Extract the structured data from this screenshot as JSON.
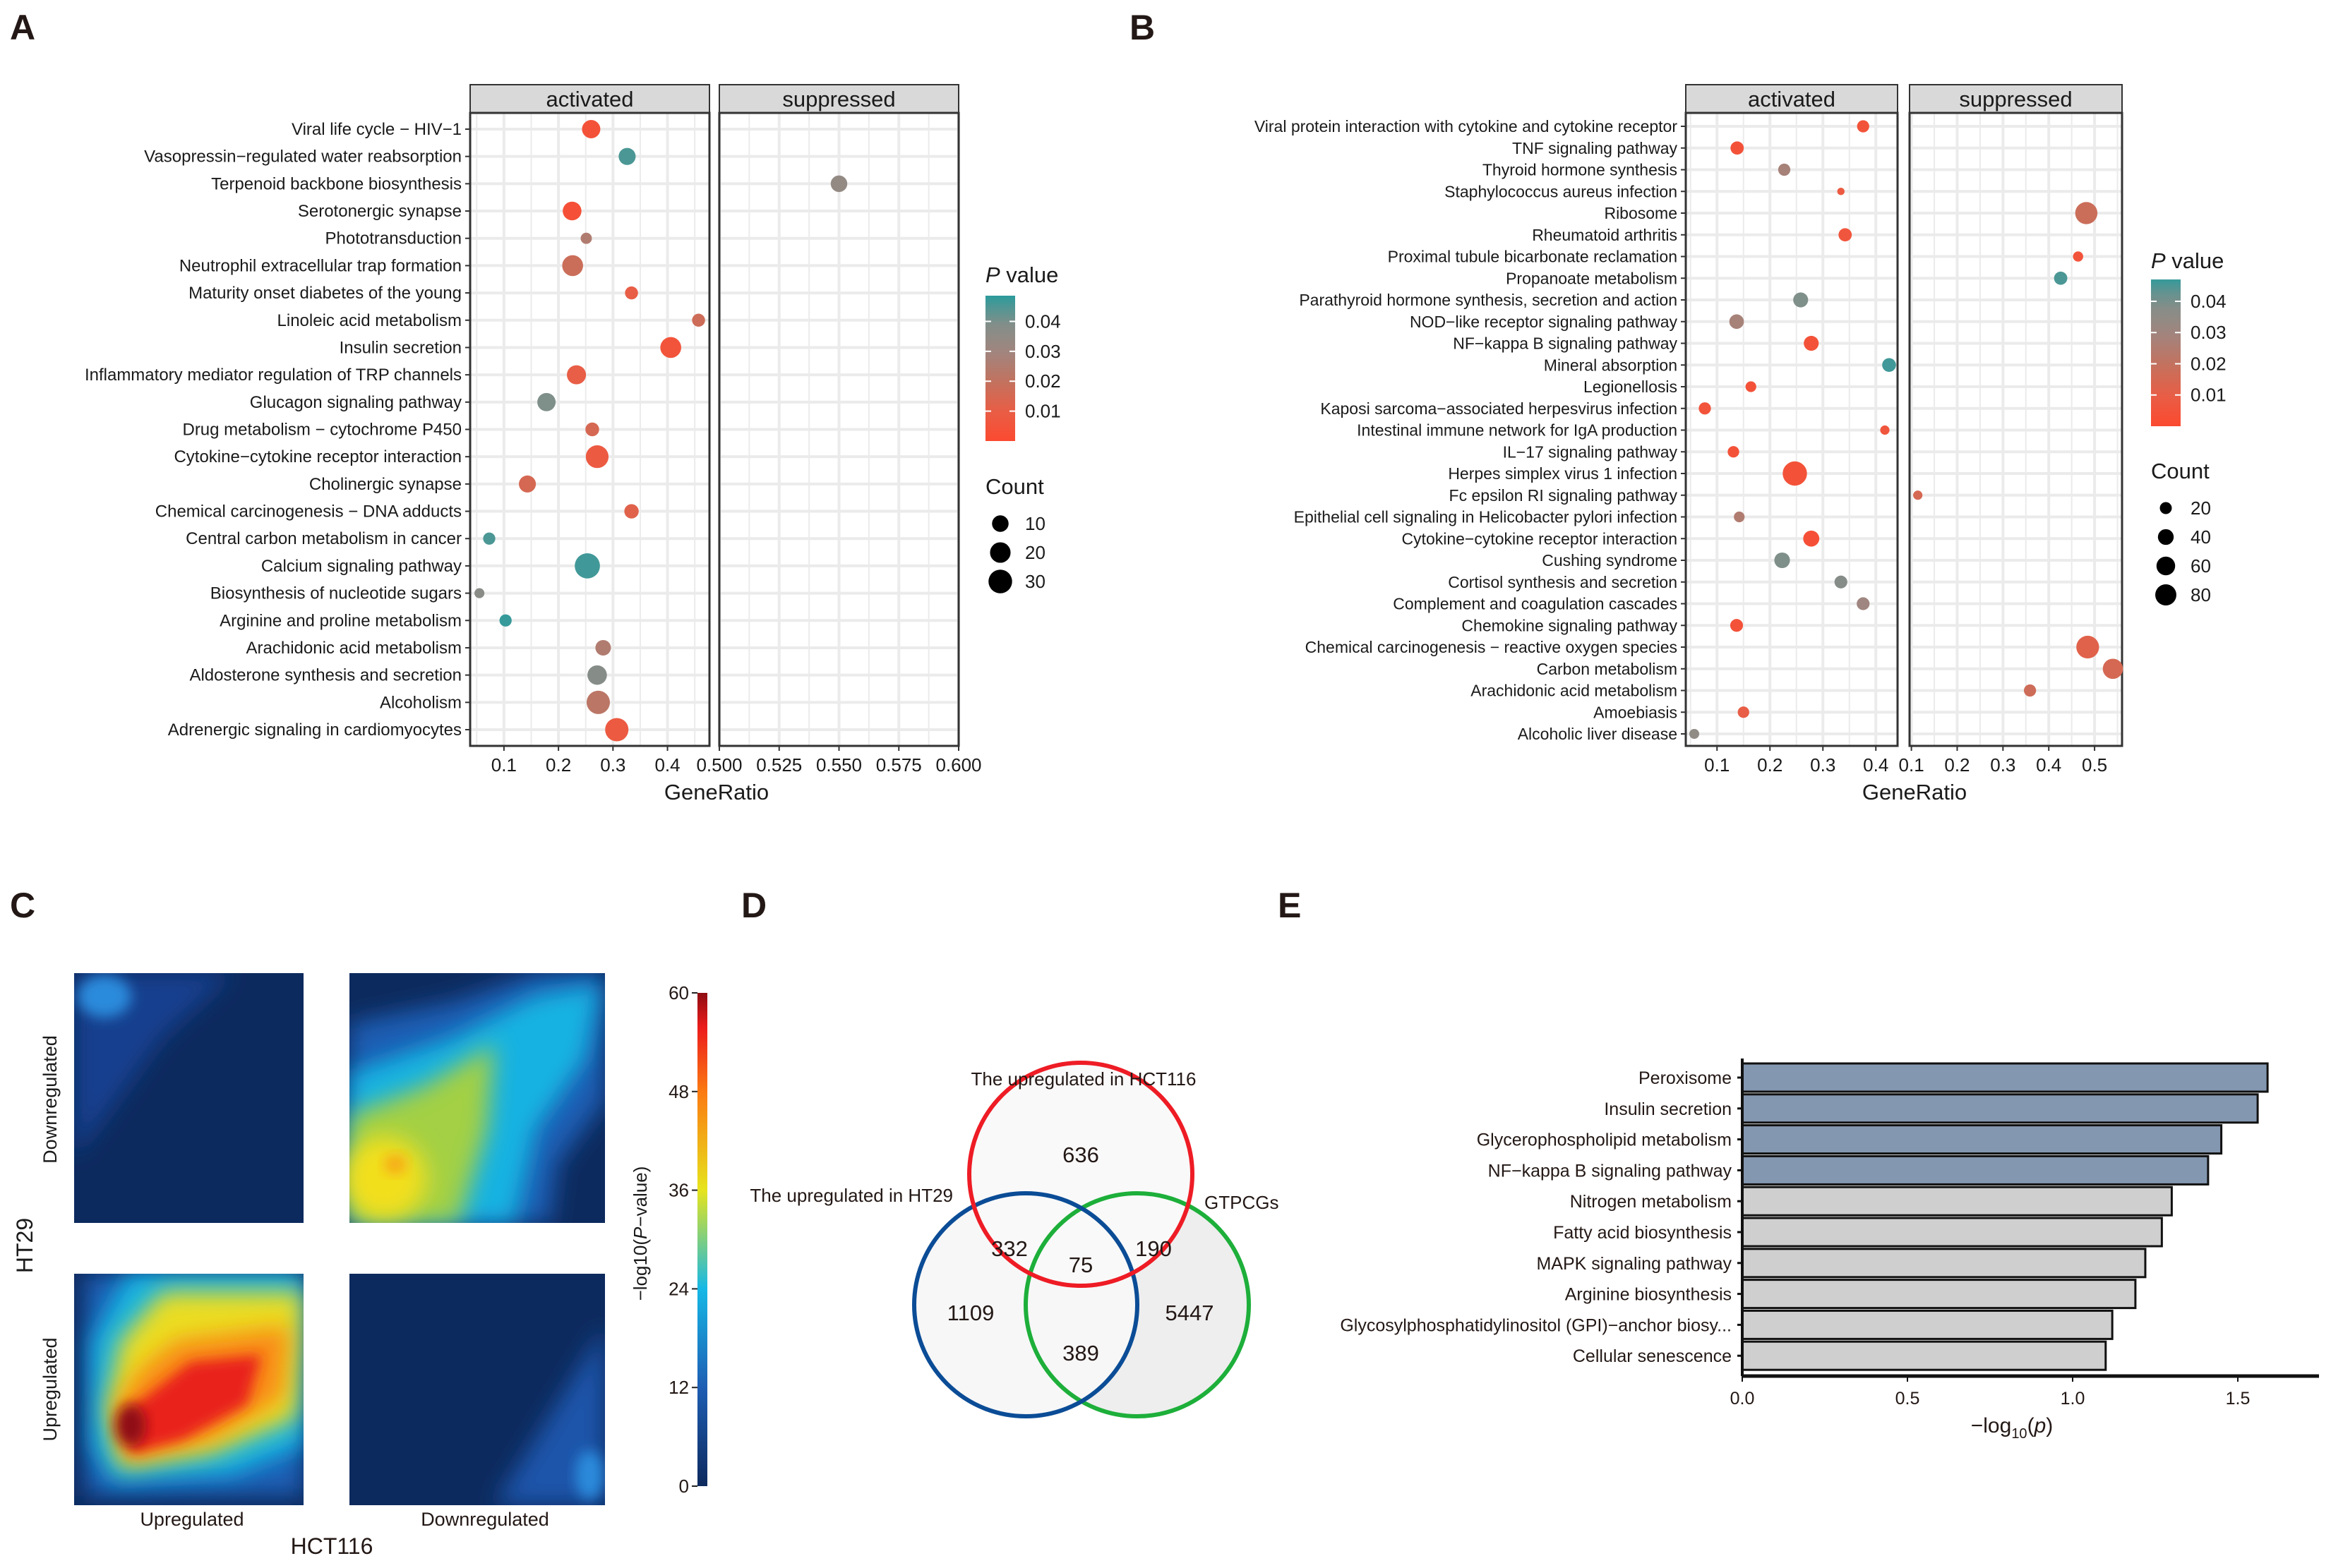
{
  "panel_labels": {
    "a": "A",
    "b": "B",
    "c": "C",
    "d": "D",
    "e": "E"
  },
  "colors": {
    "p_low": "#FB4A30",
    "p_mid": "#A08680",
    "p_high": "#2C9B9C",
    "strip": "#D9D9D9",
    "grid": "#EBEBEB",
    "bar_highlight": "#8497B0",
    "bar_other": "#CFCFCF",
    "venn_red": "#EE1C25",
    "venn_blue": "#0B4C96",
    "venn_green": "#1DAF3A",
    "heat_navy": "#0D2A5E"
  },
  "chart_data": [
    {
      "panel": "A",
      "type": "scatter",
      "facets": [
        "activated",
        "suppressed"
      ],
      "xlabel": "GeneRatio",
      "xlim": {
        "activated": [
          0.038,
          0.477
        ],
        "suppressed": [
          0.5,
          0.6
        ]
      },
      "xticks": {
        "activated": [
          "0.1",
          "0.2",
          "0.3",
          "0.4"
        ],
        "suppressed": [
          "0.500",
          "0.525",
          "0.550",
          "0.575",
          "0.600"
        ]
      },
      "color_legend": {
        "title_var": "P",
        "title_rest": " value",
        "ticks": [
          "0.04",
          "0.03",
          "0.02",
          "0.01"
        ],
        "range": [
          0,
          0.0486
        ]
      },
      "size_legend": {
        "title": "Count",
        "values": [
          "10",
          "20",
          "30"
        ]
      },
      "terms": [
        {
          "name": "Viral life cycle − HIV−1",
          "facet": "activated",
          "x": 0.26,
          "p": 0.004,
          "count": 14
        },
        {
          "name": "Vasopressin−regulated water reabsorption",
          "facet": "activated",
          "x": 0.326,
          "p": 0.045,
          "count": 11
        },
        {
          "name": "Terpenoid backbone biosynthesis",
          "facet": "suppressed",
          "x": 0.55,
          "p": 0.034,
          "count": 10
        },
        {
          "name": "Serotonergic synapse",
          "facet": "activated",
          "x": 0.225,
          "p": 0.003,
          "count": 15
        },
        {
          "name": "Phototransduction",
          "facet": "activated",
          "x": 0.251,
          "p": 0.025,
          "count": 2
        },
        {
          "name": "Neutrophil extracellular trap formation",
          "facet": "activated",
          "x": 0.226,
          "p": 0.018,
          "count": 21
        },
        {
          "name": "Maturity onset diabetes of the young",
          "facet": "activated",
          "x": 0.334,
          "p": 0.01,
          "count": 4
        },
        {
          "name": "Linoleic acid metabolism",
          "facet": "activated",
          "x": 0.457,
          "p": 0.017,
          "count": 4
        },
        {
          "name": "Insulin secretion",
          "facet": "activated",
          "x": 0.406,
          "p": 0.005,
          "count": 21
        },
        {
          "name": "Inflammatory mediator regulation of TRP channels",
          "facet": "activated",
          "x": 0.233,
          "p": 0.01,
          "count": 16
        },
        {
          "name": "Glucagon signaling pathway",
          "facet": "activated",
          "x": 0.178,
          "p": 0.04,
          "count": 14
        },
        {
          "name": "Drug metabolism − cytochrome P450",
          "facet": "activated",
          "x": 0.262,
          "p": 0.015,
          "count": 5
        },
        {
          "name": "Cytokine−cytokine receptor interaction",
          "facet": "activated",
          "x": 0.271,
          "p": 0.008,
          "count": 27
        },
        {
          "name": "Cholinergic synapse",
          "facet": "activated",
          "x": 0.143,
          "p": 0.015,
          "count": 11
        },
        {
          "name": "Chemical carcinogenesis − DNA adducts",
          "facet": "activated",
          "x": 0.334,
          "p": 0.012,
          "count": 6
        },
        {
          "name": "Central carbon metabolism in cancer",
          "facet": "activated",
          "x": 0.073,
          "p": 0.045,
          "count": 3
        },
        {
          "name": "Calcium signaling pathway",
          "facet": "activated",
          "x": 0.253,
          "p": 0.046,
          "count": 36
        },
        {
          "name": "Biosynthesis of nucleotide sugars",
          "facet": "activated",
          "x": 0.055,
          "p": 0.037,
          "count": 1
        },
        {
          "name": "Arginine and proline metabolism",
          "facet": "activated",
          "x": 0.103,
          "p": 0.047,
          "count": 3
        },
        {
          "name": "Arachidonic acid metabolism",
          "facet": "activated",
          "x": 0.282,
          "p": 0.025,
          "count": 8
        },
        {
          "name": "Aldosterone synthesis and secretion",
          "facet": "activated",
          "x": 0.271,
          "p": 0.038,
          "count": 17
        },
        {
          "name": "Alcoholism",
          "facet": "activated",
          "x": 0.273,
          "p": 0.022,
          "count": 29
        },
        {
          "name": "Adrenergic signaling in cardiomyocytes",
          "facet": "activated",
          "x": 0.307,
          "p": 0.008,
          "count": 29
        }
      ]
    },
    {
      "panel": "B",
      "type": "scatter",
      "facets": [
        "activated",
        "suppressed"
      ],
      "xlabel": "GeneRatio",
      "xlim": {
        "activated": [
          0.041,
          0.441
        ],
        "suppressed": [
          0.096,
          0.56
        ]
      },
      "xticks": {
        "activated": [
          "0.1",
          "0.2",
          "0.3",
          "0.4"
        ],
        "suppressed": [
          "0.1",
          "0.2",
          "0.3",
          "0.4",
          "0.5"
        ]
      },
      "color_legend": {
        "title_var": "P",
        "title_rest": " value",
        "ticks": [
          "0.04",
          "0.03",
          "0.02",
          "0.01"
        ],
        "range": [
          0,
          0.047
        ]
      },
      "size_legend": {
        "title": "Count",
        "values": [
          "20",
          "40",
          "60",
          "80"
        ]
      },
      "terms": [
        {
          "name": "Viral protein interaction with cytokine and cytokine receptor",
          "facet": "activated",
          "x": 0.376,
          "p": 0.005,
          "count": 21
        },
        {
          "name": "TNF signaling pathway",
          "facet": "activated",
          "x": 0.138,
          "p": 0.004,
          "count": 26
        },
        {
          "name": "Thyroid hormone synthesis",
          "facet": "activated",
          "x": 0.227,
          "p": 0.028,
          "count": 21
        },
        {
          "name": "Staphylococcus aureus infection",
          "facet": "activated",
          "x": 0.334,
          "p": 0.008,
          "count": 5
        },
        {
          "name": "Ribosome",
          "facet": "suppressed",
          "x": 0.482,
          "p": 0.018,
          "count": 90
        },
        {
          "name": "Rheumatoid arthritis",
          "facet": "activated",
          "x": 0.342,
          "p": 0.006,
          "count": 26
        },
        {
          "name": "Proximal tubule bicarbonate reclamation",
          "facet": "suppressed",
          "x": 0.464,
          "p": 0.005,
          "count": 13
        },
        {
          "name": "Propanoate metabolism",
          "facet": "suppressed",
          "x": 0.426,
          "p": 0.045,
          "count": 26
        },
        {
          "name": "Parathyroid hormone synthesis, secretion and action",
          "facet": "activated",
          "x": 0.258,
          "p": 0.04,
          "count": 35
        },
        {
          "name": "NOD−like receptor signaling pathway",
          "facet": "activated",
          "x": 0.137,
          "p": 0.028,
          "count": 33
        },
        {
          "name": "NF−kappa B signaling pathway",
          "facet": "activated",
          "x": 0.278,
          "p": 0.004,
          "count": 35
        },
        {
          "name": "Mineral absorption",
          "facet": "activated",
          "x": 0.425,
          "p": 0.046,
          "count": 29
        },
        {
          "name": "Legionellosis",
          "facet": "activated",
          "x": 0.164,
          "p": 0.004,
          "count": 15
        },
        {
          "name": "Kaposi sarcoma−associated herpesvirus infection",
          "facet": "activated",
          "x": 0.077,
          "p": 0.005,
          "count": 21
        },
        {
          "name": "Intestinal immune network for IgA production",
          "facet": "activated",
          "x": 0.417,
          "p": 0.006,
          "count": 10
        },
        {
          "name": "IL−17 signaling pathway",
          "facet": "activated",
          "x": 0.131,
          "p": 0.004,
          "count": 18
        },
        {
          "name": "Herpes simplex virus 1 infection",
          "facet": "activated",
          "x": 0.247,
          "p": 0.004,
          "count": 110
        },
        {
          "name": "Fc epsilon RI signaling pathway",
          "facet": "suppressed",
          "x": 0.114,
          "p": 0.015,
          "count": 10
        },
        {
          "name": "Epithelial cell signaling in Helicobacter pylori infection",
          "facet": "activated",
          "x": 0.142,
          "p": 0.025,
          "count": 15
        },
        {
          "name": "Cytokine−cytokine receptor interaction",
          "facet": "activated",
          "x": 0.278,
          "p": 0.003,
          "count": 42
        },
        {
          "name": "Cushing syndrome",
          "facet": "activated",
          "x": 0.223,
          "p": 0.04,
          "count": 39
        },
        {
          "name": "Cortisol synthesis and secretion",
          "facet": "activated",
          "x": 0.334,
          "p": 0.038,
          "count": 24
        },
        {
          "name": "Complement and coagulation cascades",
          "facet": "activated",
          "x": 0.376,
          "p": 0.03,
          "count": 24
        },
        {
          "name": "Chemokine signaling pathway",
          "facet": "activated",
          "x": 0.137,
          "p": 0.004,
          "count": 24
        },
        {
          "name": "Chemical carcinogenesis − reactive oxygen species",
          "facet": "suppressed",
          "x": 0.485,
          "p": 0.012,
          "count": 95
        },
        {
          "name": "Carbon metabolism",
          "facet": "suppressed",
          "x": 0.54,
          "p": 0.015,
          "count": 72
        },
        {
          "name": "Arachidonic acid metabolism",
          "facet": "suppressed",
          "x": 0.359,
          "p": 0.017,
          "count": 21
        },
        {
          "name": "Amoebiasis",
          "facet": "activated",
          "x": 0.15,
          "p": 0.01,
          "count": 18
        },
        {
          "name": "Alcoholic liver disease",
          "facet": "activated",
          "x": 0.057,
          "p": 0.035,
          "count": 12
        }
      ]
    },
    {
      "panel": "C",
      "type": "heatmap",
      "xlabel": "HCT116",
      "ylabel": "HT29",
      "x_categories": [
        "Upregulated",
        "Downregulated"
      ],
      "y_categories": [
        "Downregulated",
        "Upregulated"
      ],
      "colorbar": {
        "title_pre": "−log10(",
        "title_var": "P",
        "title_post": "−value)",
        "ticks": [
          "0",
          "12",
          "24",
          "36",
          "48",
          "60"
        ],
        "range": [
          0,
          60
        ]
      },
      "quadrant_peak_values": {
        "up_up": 58,
        "down_down": 42,
        "up_down": 20,
        "down_up": 16
      }
    },
    {
      "panel": "D",
      "type": "venn",
      "sets": [
        "The upregulated  in HCT116",
        "The upregulated  in HT29",
        "GTPCGs"
      ],
      "regions": {
        "hct116_only": "636",
        "ht29_only": "1109",
        "gtpcgs_only": "5447",
        "hct116_ht29": "332",
        "hct116_gtpcgs": "190",
        "ht29_gtpcgs": "389",
        "all_three": "75"
      }
    },
    {
      "panel": "E",
      "type": "bar",
      "orientation": "horizontal",
      "categories": [
        "Peroxisome",
        "Insulin secretion",
        "Glycerophospholipid metabolism",
        "NF−kappa B signaling pathway",
        "Nitrogen metabolism",
        "Fatty acid biosynthesis",
        "MAPK signaling pathway",
        "Arginine biosynthesis",
        "Glycosylphosphatidylinositol (GPI)−anchor biosy...",
        "Cellular senescence"
      ],
      "values": [
        1.59,
        1.56,
        1.45,
        1.41,
        1.3,
        1.27,
        1.22,
        1.19,
        1.12,
        1.1
      ],
      "highlighted": [
        true,
        true,
        true,
        true,
        false,
        false,
        false,
        false,
        false,
        false
      ],
      "xlabel": {
        "pre": "−log",
        "sub": "10",
        "open": "(",
        "var": "p",
        "close": ")"
      },
      "xticks": [
        "0.0",
        "0.5",
        "1.0",
        "1.5"
      ],
      "xlim": [
        0,
        1.74
      ]
    }
  ]
}
